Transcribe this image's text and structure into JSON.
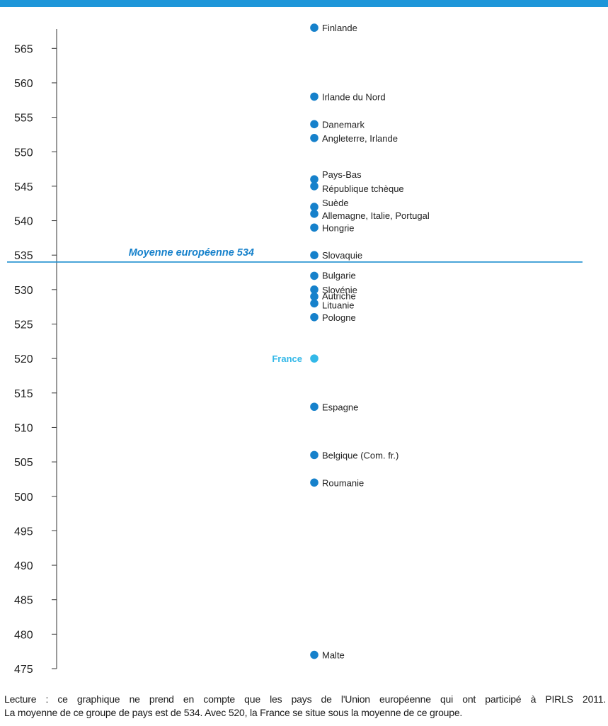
{
  "colors": {
    "top_bar": "#1e96d9",
    "axis": "#333333",
    "point": "#1681cb",
    "highlight": "#33b8e8",
    "mean_line": "#1e8fcf",
    "mean_label": "#1681cb",
    "text": "#222222"
  },
  "chart_data": {
    "type": "scatter",
    "title": "",
    "xlabel": "",
    "ylabel": "",
    "ylim": [
      475,
      568
    ],
    "yticks": [
      475,
      480,
      485,
      490,
      495,
      500,
      505,
      510,
      515,
      520,
      525,
      530,
      535,
      540,
      545,
      550,
      555,
      560,
      565
    ],
    "grid": false,
    "legend": "none",
    "reference_line": {
      "value": 534,
      "label": "Moyenne européenne 534"
    },
    "points": [
      {
        "label": "Finlande",
        "y": 568
      },
      {
        "label": "Irlande du Nord",
        "y": 558
      },
      {
        "label": "Danemark",
        "y": 554
      },
      {
        "label": "Angleterre, Irlande",
        "y": 552
      },
      {
        "label": "Pays-Bas",
        "y": 546
      },
      {
        "label": "République tchèque",
        "y": 545
      },
      {
        "label": "Suède",
        "y": 542
      },
      {
        "label": "Allemagne, Italie, Portugal",
        "y": 541
      },
      {
        "label": "Hongrie",
        "y": 539
      },
      {
        "label": "Slovaquie",
        "y": 535
      },
      {
        "label": "Bulgarie",
        "y": 532
      },
      {
        "label": "Slovénie",
        "y": 530
      },
      {
        "label": "Autriche",
        "y": 529
      },
      {
        "label": "Lituanie",
        "y": 528
      },
      {
        "label": "Pologne",
        "y": 526
      },
      {
        "label": "France",
        "y": 520,
        "highlight": true
      },
      {
        "label": "Espagne",
        "y": 513
      },
      {
        "label": "Belgique (Com. fr.)",
        "y": 506
      },
      {
        "label": "Roumanie",
        "y": 502
      },
      {
        "label": "Malte",
        "y": 477
      }
    ]
  },
  "caption": {
    "line1": "Lecture : ce graphique ne prend en compte que les pays de l'Union européenne qui ont participé à PIRLS 2011.",
    "line2": "La moyenne de ce groupe de pays est de 534. Avec 520, la France se situe sous la moyenne de ce groupe."
  }
}
